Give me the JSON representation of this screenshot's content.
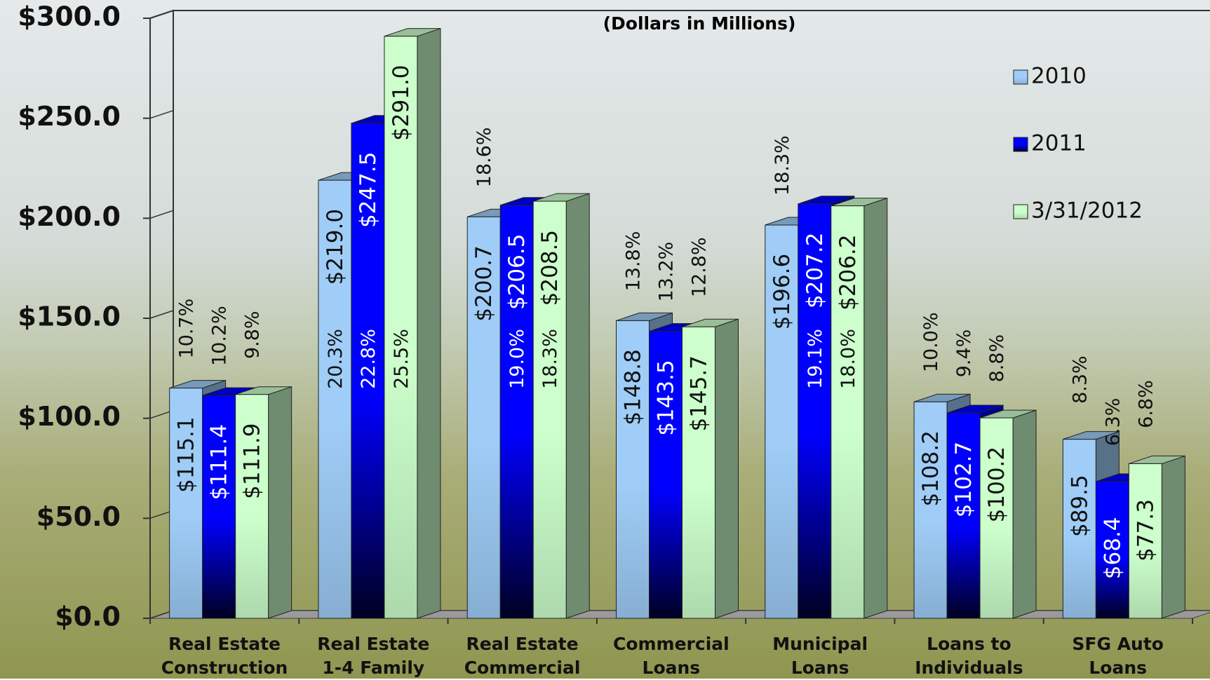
{
  "chart_data": {
    "type": "bar3d",
    "title": "(Dollars in Millions)",
    "categories": [
      "Real Estate\nConstruction",
      "Real Estate\n1-4 Family",
      "Real Estate\nCommercial",
      "Commercial\nLoans",
      "Municipal\nLoans",
      "Loans to\nIndividuals",
      "SFG Auto\nLoans"
    ],
    "series": [
      {
        "name": "2010",
        "color": "#9fcdf7",
        "values": [
          115.1,
          219.0,
          200.7,
          148.8,
          196.6,
          108.2,
          89.5
        ],
        "value_labels": [
          "$115.1",
          "$219.0",
          "$200.7",
          "$148.8",
          "$196.6",
          "$108.2",
          "$89.5"
        ],
        "percents": [
          10.7,
          20.3,
          18.6,
          13.8,
          18.3,
          10.0,
          8.3
        ],
        "percent_labels": [
          "10.7%",
          "20.3%",
          "18.6%",
          "13.8%",
          "18.3%",
          "10.0%",
          "8.3%"
        ]
      },
      {
        "name": "2011",
        "color": "#0000ff",
        "values": [
          111.4,
          247.5,
          206.5,
          143.5,
          207.2,
          102.7,
          68.4
        ],
        "value_labels": [
          "$111.4",
          "$247.5",
          "$206.5",
          "$143.5",
          "$207.2",
          "$102.7",
          "$68.4"
        ],
        "percents": [
          10.2,
          22.8,
          19.0,
          13.2,
          19.1,
          9.4,
          6.3
        ],
        "percent_labels": [
          "10.2%",
          "22.8%",
          "19.0%",
          "13.2%",
          "19.1%",
          "9.4%",
          "6.3%"
        ]
      },
      {
        "name": "3/31/2012",
        "color": "#ccffcc",
        "values": [
          111.9,
          291.0,
          208.5,
          145.7,
          206.2,
          100.2,
          77.3
        ],
        "value_labels": [
          "$111.9",
          "$291.0",
          "$208.5",
          "$145.7",
          "$206.2",
          "$100.2",
          "$77.3"
        ],
        "percents": [
          9.8,
          25.5,
          18.3,
          12.8,
          18.0,
          8.8,
          6.8
        ],
        "percent_labels": [
          "9.8%",
          "25.5%",
          "18.3%",
          "12.8%",
          "18.0%",
          "8.8%",
          "6.8%"
        ]
      }
    ],
    "ylim": [
      0,
      300
    ],
    "yticks": [
      {
        "value": 0,
        "label": "$0.0"
      },
      {
        "value": 50,
        "label": "$50.0"
      },
      {
        "value": 100,
        "label": "$100.0"
      },
      {
        "value": 150,
        "label": "$150.0"
      },
      {
        "value": 200,
        "label": "$200.0"
      },
      {
        "value": 250,
        "label": "$250.0"
      },
      {
        "value": 300,
        "label": "$300.0"
      }
    ],
    "legend": "right"
  }
}
